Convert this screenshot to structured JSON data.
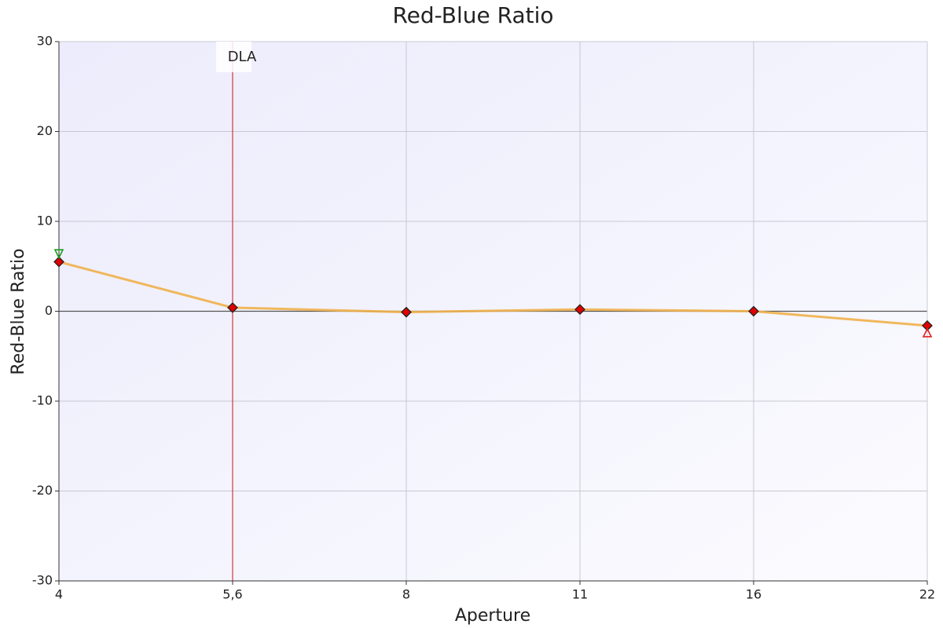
{
  "chart_data": {
    "type": "line",
    "title": "Red-Blue Ratio",
    "x_label": "Aperture",
    "y_label": "Red-Blue Ratio",
    "categories": [
      "4",
      "5,6",
      "8",
      "11",
      "16",
      "22"
    ],
    "values": [
      5.5,
      0.4,
      -0.1,
      0.2,
      0.0,
      -1.6
    ],
    "color": "#f0b04a",
    "marker_color": "#e00000",
    "ylim": [
      -30,
      30
    ],
    "yticks": [
      -30,
      -20,
      -10,
      0,
      10,
      20,
      30
    ],
    "grid": true,
    "markers": [
      {
        "category": "4",
        "value": 6.4,
        "shape": "triangle-down",
        "color": "#1a9a1a"
      },
      {
        "category": "22",
        "value": -2.4,
        "shape": "triangle-up",
        "color": "#e02020"
      }
    ],
    "annotations": [
      {
        "text": "DLA",
        "category": "5,6",
        "color": "#d01010"
      }
    ]
  }
}
